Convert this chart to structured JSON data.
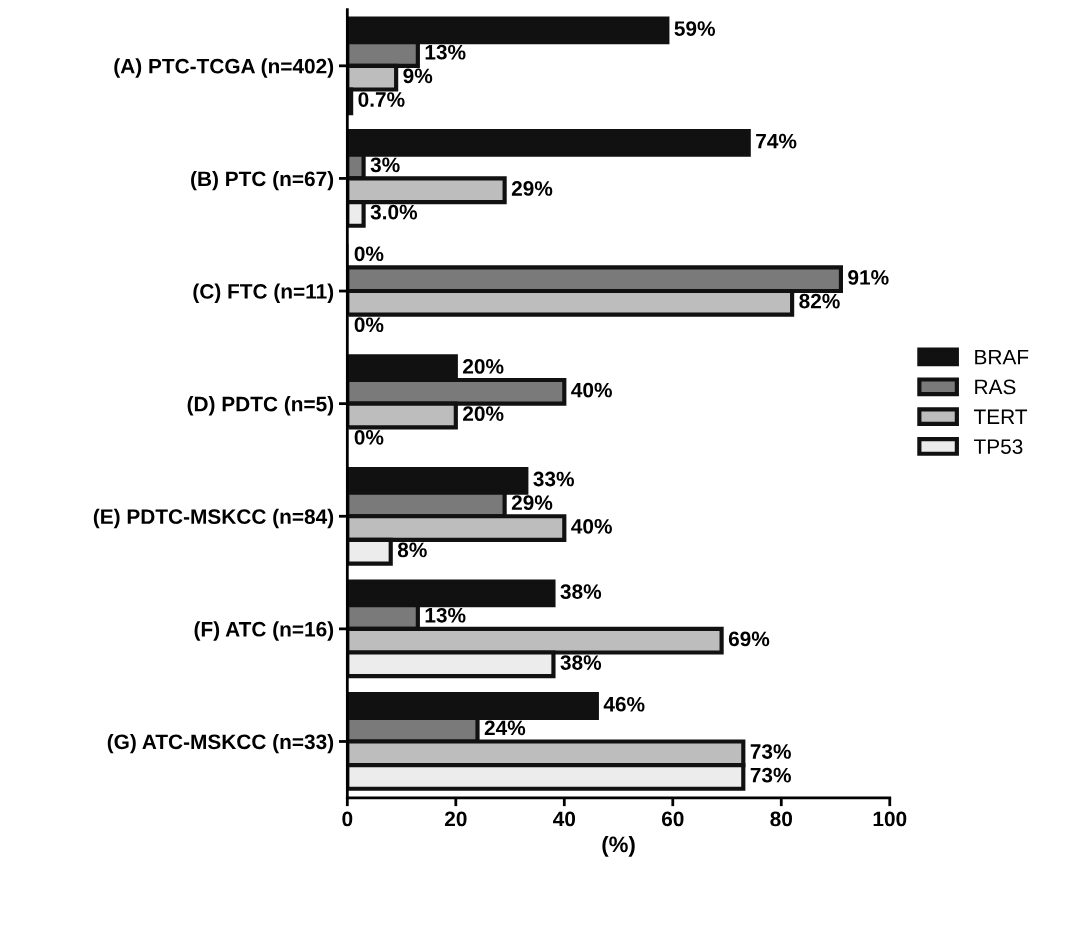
{
  "chart_data": {
    "type": "bar",
    "orientation": "horizontal",
    "xlabel": "(%)",
    "categories": [
      "(A) PTC-TCGA (n=402)",
      "(B) PTC (n=67)",
      "(C) FTC (n=11)",
      "(D) PDTC (n=5)",
      "(E) PDTC-MSKCC (n=84)",
      "(F) ATC (n=16)",
      "(G) ATC-MSKCC (n=33)"
    ],
    "series": [
      {
        "name": "BRAF",
        "color": "#111111",
        "values": [
          59,
          74,
          0,
          20,
          33,
          38,
          46
        ],
        "value_labels": [
          "59%",
          "74%",
          "0%",
          "20%",
          "33%",
          "38%",
          "46%"
        ]
      },
      {
        "name": "RAS",
        "color": "#7a7a7a",
        "values": [
          13,
          3,
          91,
          40,
          29,
          13,
          24
        ],
        "value_labels": [
          "13%",
          "3%",
          "91%",
          "40%",
          "29%",
          "13%",
          "24%"
        ]
      },
      {
        "name": "TERT",
        "color": "#bdbdbd",
        "values": [
          9,
          29,
          82,
          20,
          40,
          69,
          73
        ],
        "value_labels": [
          "9%",
          "29%",
          "82%",
          "20%",
          "40%",
          "69%",
          "73%"
        ]
      },
      {
        "name": "TP53",
        "color": "#ececec",
        "values": [
          0.7,
          3.0,
          0,
          0,
          8,
          38,
          73
        ],
        "value_labels": [
          "0.7%",
          "3.0%",
          "0%",
          "0%",
          "8%",
          "38%",
          "73%"
        ]
      }
    ],
    "xlim": [
      0,
      100
    ],
    "xticks": [
      0,
      20,
      40,
      60,
      80,
      100
    ],
    "grid": false,
    "legend": "right"
  }
}
